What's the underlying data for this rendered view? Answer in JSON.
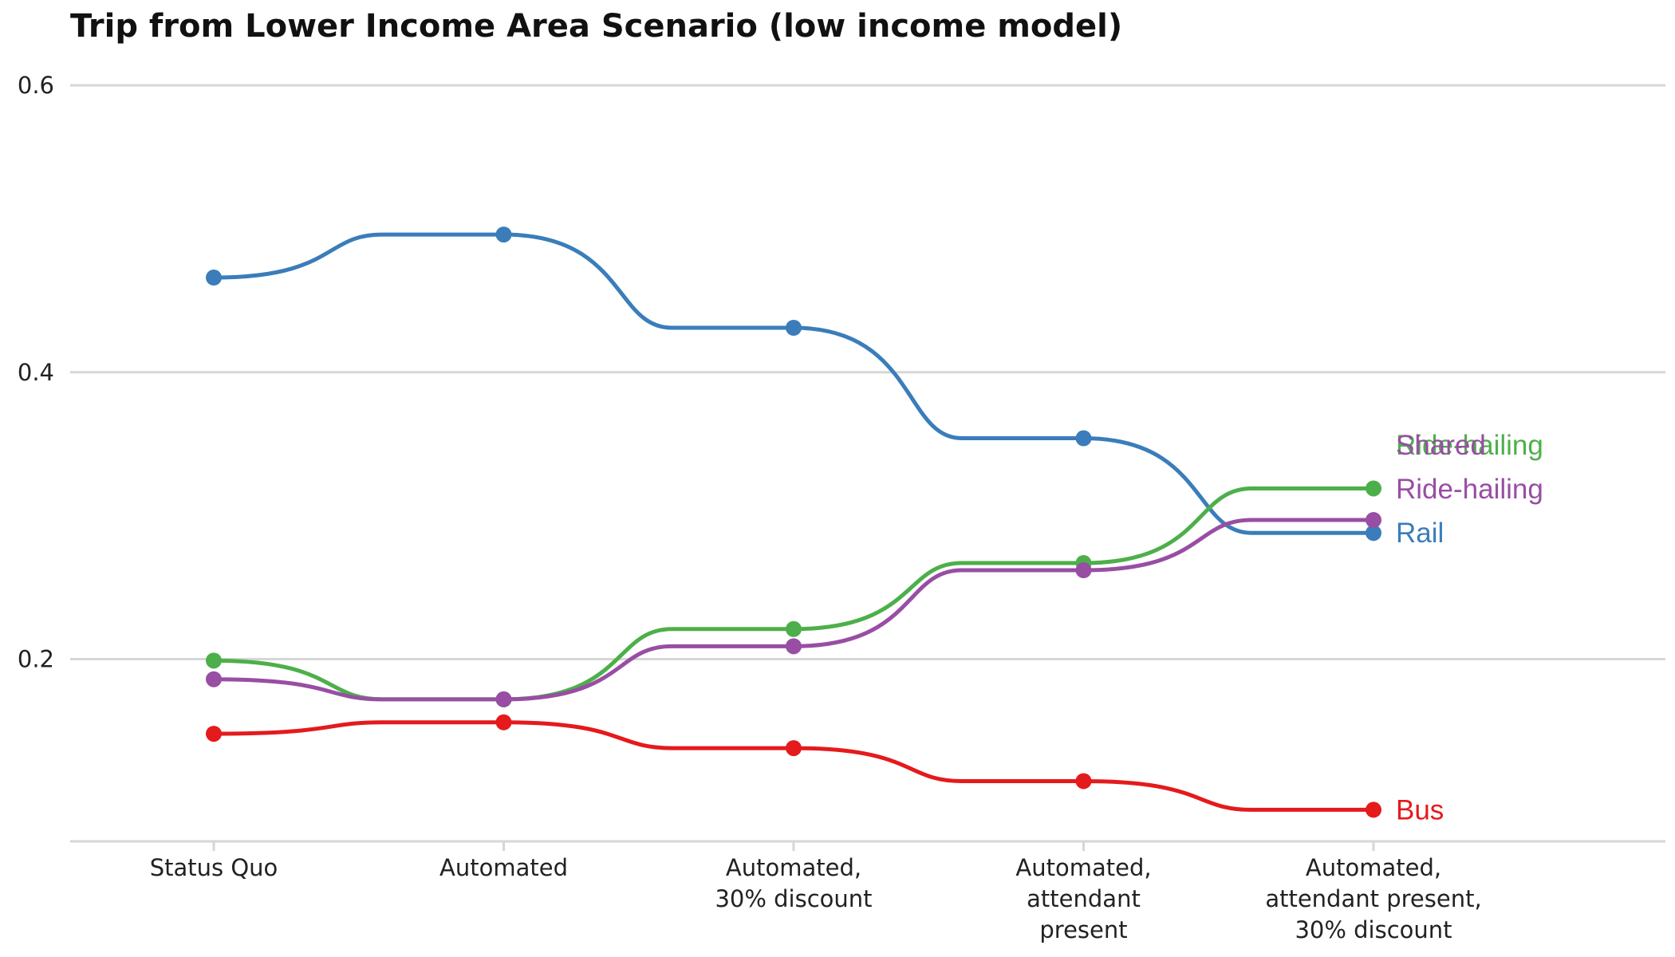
{
  "chart_data": {
    "type": "line",
    "title": "Trip from Lower Income Area Scenario (low income model)",
    "xlabel": "",
    "ylabel": "",
    "categories": [
      [
        "Status Quo"
      ],
      [
        "Automated"
      ],
      [
        "Automated,",
        "30% discount"
      ],
      [
        "Automated,",
        "attendant",
        "present"
      ],
      [
        "Automated,",
        "attendant present,",
        "30% discount"
      ]
    ],
    "ylim": [
      0.073,
      0.6
    ],
    "yticks": [
      0.2,
      0.4,
      0.6
    ],
    "ytick_labels": [
      "0.2",
      "0.4",
      "0.6"
    ],
    "grid": "horizontal",
    "legend": "direct labels at right end of lines",
    "series": [
      {
        "name": "Rail",
        "label": [
          "Rail"
        ],
        "color": "#3A7DBA",
        "values": [
          0.466,
          0.496,
          0.431,
          0.354,
          0.288
        ]
      },
      {
        "name": "Ride-hailing",
        "label": [
          "Ride-hailing"
        ],
        "color": "#4DAF4A",
        "values": [
          0.199,
          0.172,
          0.221,
          0.267,
          0.319
        ]
      },
      {
        "name": "Shared Ride-hailing",
        "label": [
          "Shared",
          "Ride-hailing"
        ],
        "color": "#984EA3",
        "values": [
          0.186,
          0.172,
          0.209,
          0.262,
          0.297
        ]
      },
      {
        "name": "Bus",
        "label": [
          "Bus"
        ],
        "color": "#E41A1C",
        "values": [
          0.148,
          0.156,
          0.138,
          0.115,
          0.095
        ]
      }
    ]
  }
}
